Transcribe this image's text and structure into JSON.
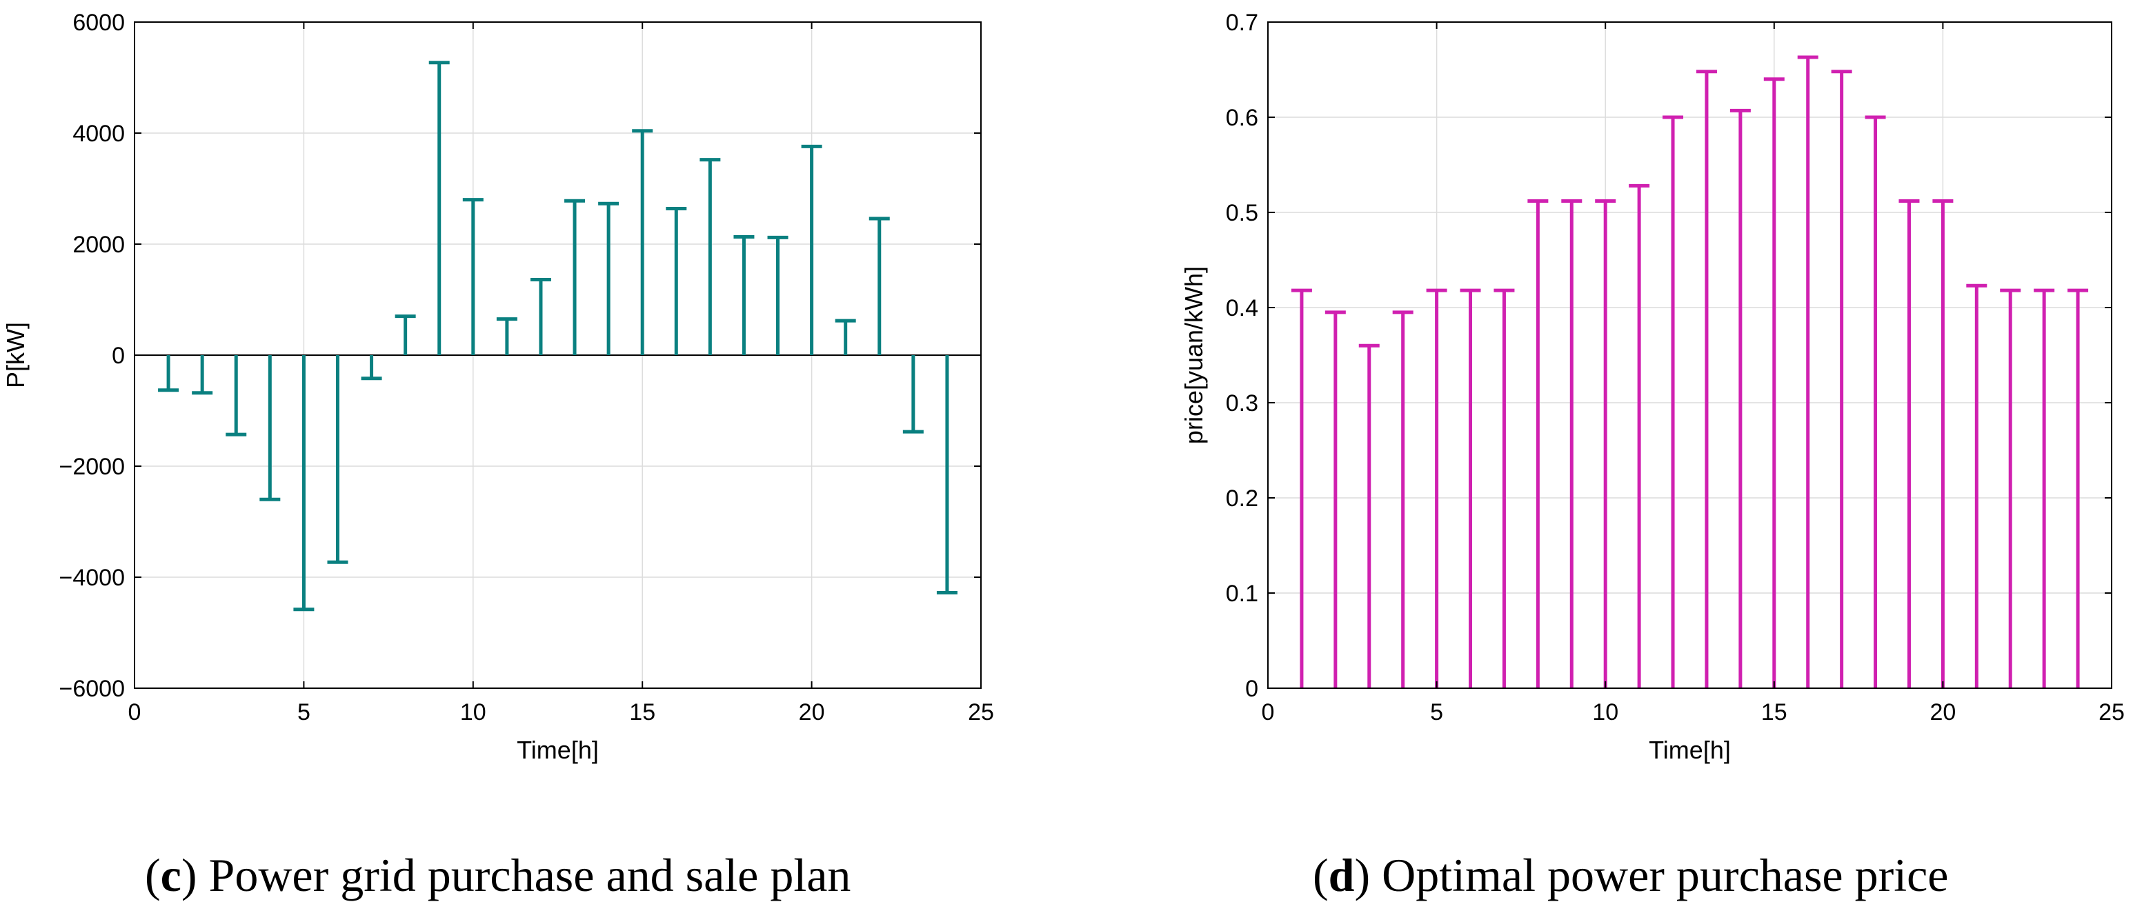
{
  "chart_data": [
    {
      "type": "bar",
      "style": "stem-T-cap",
      "color": "#0a8080",
      "xlabel": "Time[h]",
      "ylabel": "P[kW]",
      "xlim": [
        0,
        25
      ],
      "ylim": [
        -6000,
        6000
      ],
      "xticks": [
        0,
        5,
        10,
        15,
        20,
        25
      ],
      "yticks": [
        -6000,
        -4000,
        -2000,
        0,
        2000,
        4000,
        6000
      ],
      "ytick_labels": [
        "−6000",
        "−4000",
        "−2000",
        "0",
        "2000",
        "4000",
        "6000"
      ],
      "grid": true,
      "x": [
        1,
        2,
        3,
        4,
        5,
        6,
        7,
        8,
        9,
        10,
        11,
        12,
        13,
        14,
        15,
        16,
        17,
        18,
        19,
        20,
        21,
        22,
        23,
        24
      ],
      "values": [
        -630,
        -680,
        -1430,
        -2600,
        -4580,
        -3730,
        -420,
        700,
        5270,
        2800,
        650,
        1360,
        2780,
        2730,
        4040,
        2640,
        3520,
        2130,
        2120,
        3760,
        620,
        2460,
        -1380,
        -4280
      ],
      "caption_letter": "c",
      "caption_text": " Power grid purchase and sale plan"
    },
    {
      "type": "bar",
      "style": "stem-T-cap",
      "color": "#d020b0",
      "xlabel": "Time[h]",
      "ylabel": "price[yuan/kWh]",
      "xlim": [
        0,
        25
      ],
      "ylim": [
        0,
        0.7
      ],
      "xticks": [
        0,
        5,
        10,
        15,
        20,
        25
      ],
      "yticks": [
        0,
        0.1,
        0.2,
        0.3,
        0.4,
        0.5,
        0.6,
        0.7
      ],
      "ytick_labels": [
        "0",
        "0.1",
        "0.2",
        "0.3",
        "0.4",
        "0.5",
        "0.6",
        "0.7"
      ],
      "grid": true,
      "x": [
        1,
        2,
        3,
        4,
        5,
        6,
        7,
        8,
        9,
        10,
        11,
        12,
        13,
        14,
        15,
        16,
        17,
        18,
        19,
        20,
        21,
        22,
        23,
        24
      ],
      "values": [
        0.418,
        0.395,
        0.36,
        0.395,
        0.418,
        0.418,
        0.418,
        0.512,
        0.512,
        0.512,
        0.528,
        0.6,
        0.648,
        0.607,
        0.64,
        0.663,
        0.648,
        0.6,
        0.512,
        0.512,
        0.423,
        0.418,
        0.418,
        0.418
      ],
      "caption_letter": "d",
      "caption_text": " Optimal power purchase price"
    }
  ]
}
